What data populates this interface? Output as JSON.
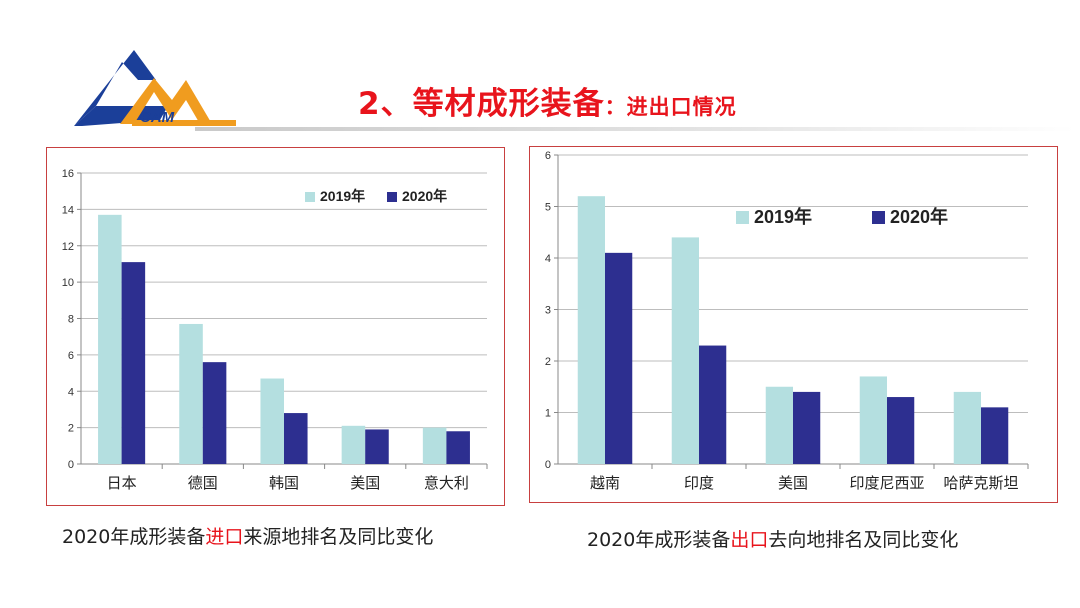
{
  "title": {
    "main": "2、等材成形装备",
    "sub": "：进出口情况"
  },
  "logo": {
    "text": "CAM"
  },
  "colors": {
    "s2019": "#b4dfe0",
    "s2020": "#2d2f90",
    "title": "#e8141c",
    "border": "#c84040"
  },
  "chart_data": [
    {
      "type": "bar",
      "categories": [
        "日本",
        "德国",
        "韩国",
        "美国",
        "意大利"
      ],
      "series": [
        {
          "name": "2019年",
          "values": [
            13.7,
            7.7,
            4.7,
            2.1,
            2.0
          ]
        },
        {
          "name": "2020年",
          "values": [
            11.1,
            5.6,
            2.8,
            1.9,
            1.8
          ]
        }
      ],
      "ylim": [
        0,
        16
      ],
      "yticks": [
        0,
        2,
        4,
        6,
        8,
        10,
        12,
        14,
        16
      ],
      "grid": true,
      "legend": "top-right"
    },
    {
      "type": "bar",
      "categories": [
        "越南",
        "印度",
        "美国",
        "印度尼西亚",
        "哈萨克斯坦"
      ],
      "series": [
        {
          "name": "2019年",
          "values": [
            5.2,
            4.4,
            1.5,
            1.7,
            1.4
          ]
        },
        {
          "name": "2020年",
          "values": [
            4.1,
            2.3,
            1.4,
            1.3,
            1.1
          ]
        }
      ],
      "ylim": [
        0,
        6
      ],
      "yticks": [
        0,
        1,
        2,
        3,
        4,
        5,
        6
      ],
      "grid": true,
      "legend": "top-right"
    }
  ],
  "captions": {
    "left": {
      "pre": "2020年成形装备",
      "hl": "进口",
      "post": "来源地排名及同比变化"
    },
    "right": {
      "pre": "2020年成形装备",
      "hl": "出口",
      "post": "去向地排名及同比变化"
    }
  }
}
